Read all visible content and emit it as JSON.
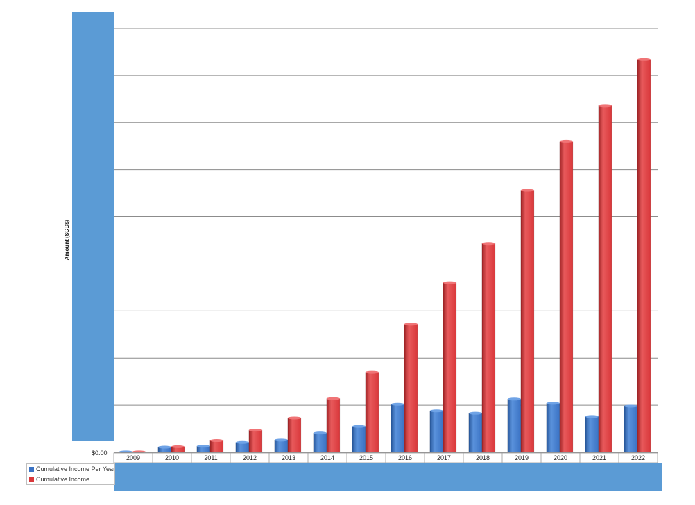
{
  "colors": {
    "panel": "#5b9bd5",
    "series1": "#3a72c4",
    "series2": "#d9373a",
    "gridline": "#8c8c8c"
  },
  "chart_data": {
    "type": "bar",
    "title": "",
    "xlabel": "",
    "ylabel": "Amount ($GD$)",
    "y_tick_labels": [
      "$0.00"
    ],
    "categories": [
      "2009",
      "2010",
      "2011",
      "2012",
      "2013",
      "2014",
      "2015",
      "2016",
      "2017",
      "2018",
      "2019",
      "2020",
      "2021",
      "2022"
    ],
    "series": [
      {
        "name": "Cumulative Income Per Year",
        "values": [
          0.1,
          1.1,
          1.3,
          2.1,
          2.6,
          4.1,
          5.5,
          10.2,
          8.8,
          8.3,
          11.3,
          10.4,
          7.6,
          9.8
        ]
      },
      {
        "name": "Cumulative Income",
        "values": [
          0.1,
          1.2,
          2.5,
          4.7,
          7.3,
          11.4,
          17.0,
          27.2,
          36.0,
          44.3,
          55.6,
          66.0,
          73.6,
          83.4
        ]
      }
    ],
    "ylim": [
      0,
      90
    ],
    "grid": true,
    "legend": "bottom-left"
  }
}
